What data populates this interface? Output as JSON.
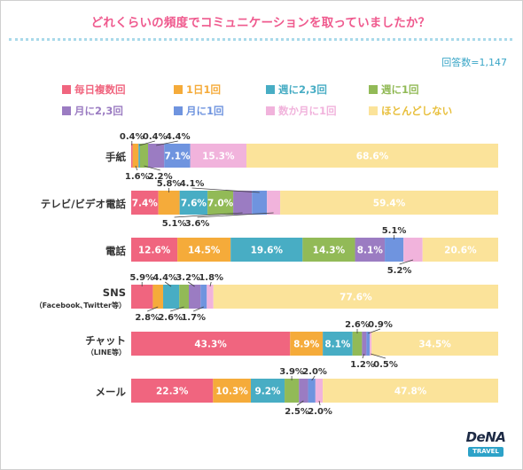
{
  "title": "どれくらいの頻度でコミュニケーションを取っていましたか？",
  "respondents": "回答数=1,147",
  "brand": {
    "logo": "DeNA",
    "sub": "TRAVEL"
  },
  "chart_data": {
    "type": "bar",
    "orientation": "horizontal",
    "stacked": true,
    "value_unit": "%",
    "xlim": [
      0,
      100
    ],
    "legend_position": "top",
    "series": [
      {
        "name": "毎日複数回",
        "color": "#f0657f"
      },
      {
        "name": "1日1回",
        "color": "#f5ab3a"
      },
      {
        "name": "週に2,3回",
        "color": "#48adc4"
      },
      {
        "name": "週に1回",
        "color": "#92ba57"
      },
      {
        "name": "月に2,3回",
        "color": "#9b7cc2"
      },
      {
        "name": "月に1回",
        "color": "#6f94df"
      },
      {
        "name": "数か月に1回",
        "color": "#f1b3dc"
      },
      {
        "name": "ほとんどしない",
        "color": "#fbe39a"
      }
    ],
    "categories": [
      {
        "label": "手紙",
        "sublabel": "",
        "values": [
          0.4,
          1.6,
          0.4,
          2.2,
          4.4,
          7.1,
          15.3,
          68.6
        ]
      },
      {
        "label": "テレビ/ビデオ電話",
        "sublabel": "",
        "values": [
          7.4,
          5.8,
          7.6,
          7.0,
          5.1,
          4.1,
          3.6,
          59.4
        ]
      },
      {
        "label": "電話",
        "sublabel": "",
        "values": [
          12.6,
          14.5,
          19.6,
          14.3,
          8.1,
          5.1,
          5.2,
          20.6
        ]
      },
      {
        "label": "SNS",
        "sublabel": "（Facebook､Twitter等）",
        "values": [
          5.9,
          2.8,
          4.4,
          2.6,
          3.2,
          1.7,
          1.8,
          77.6
        ]
      },
      {
        "label": "チャット",
        "sublabel": "（LINE等）",
        "values": [
          43.3,
          8.9,
          8.1,
          2.6,
          1.2,
          0.9,
          0.5,
          34.5
        ]
      },
      {
        "label": "メール",
        "sublabel": "",
        "values": [
          22.3,
          10.3,
          9.2,
          3.9,
          2.5,
          2.0,
          2.0,
          47.8
        ]
      }
    ]
  }
}
